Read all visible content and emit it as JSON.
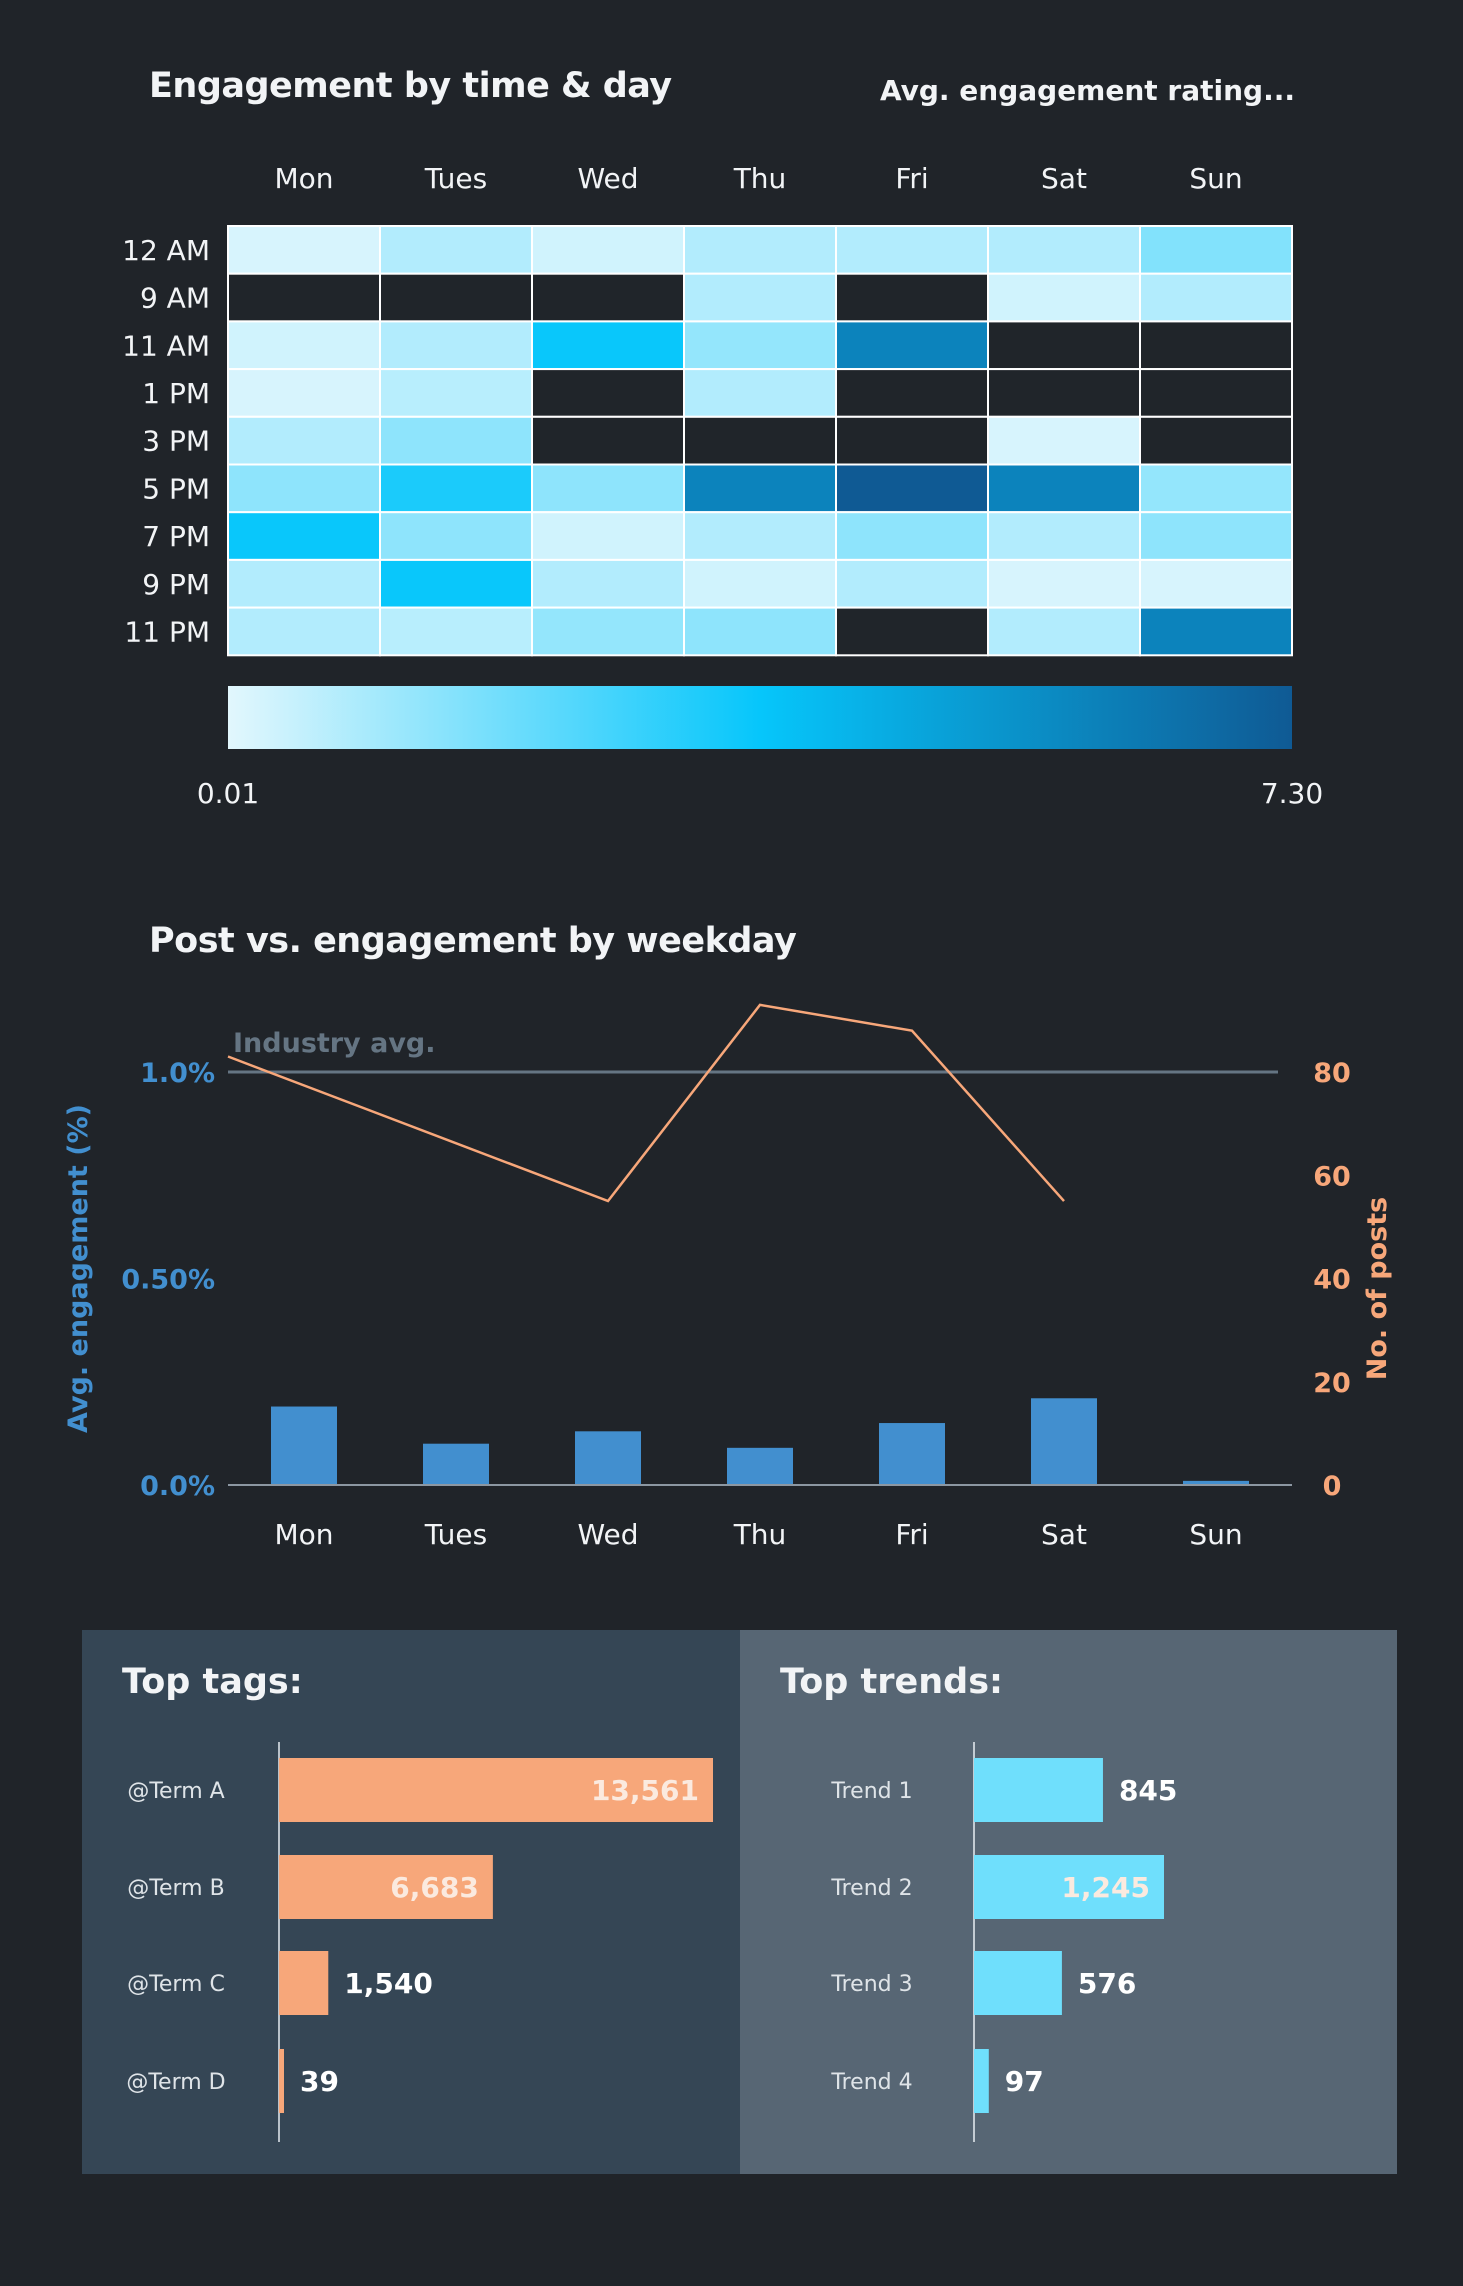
{
  "heatmap": {
    "title": "Engagement by time & day",
    "legend_title": "Avg. engagement rating...",
    "scale_min_label": "0.01",
    "scale_max_label": "7.30"
  },
  "combo": {
    "title": "Post vs. engagement by weekday",
    "industry_label": "Industry avg."
  },
  "tags": {
    "title": "Top tags:"
  },
  "trends": {
    "title": "Top trends:"
  },
  "colors": {
    "background": "#202429",
    "heat_empty": "#20252a",
    "heat_low": "#e2f7fd",
    "heat_mid": "#06c6fb",
    "heat_high": "#0f5a94",
    "bar_blue": "#428fcf",
    "line_orange": "#f7a77a",
    "industry_line": "#657583",
    "tag_bar": "#f7a77a",
    "trend_bar": "#6fdffc"
  },
  "chart_data": [
    {
      "type": "heatmap",
      "title": "Engagement by time & day",
      "x": [
        "Mon",
        "Tues",
        "Wed",
        "Thu",
        "Fri",
        "Sat",
        "Sun"
      ],
      "y": [
        "12 AM",
        "9 AM",
        "11 AM",
        "1 PM",
        "3 PM",
        "5 PM",
        "7 PM",
        "9 PM",
        "11 PM"
      ],
      "values": [
        [
          0.2,
          0.8,
          0.3,
          0.8,
          0.8,
          0.8,
          1.6
        ],
        [
          null,
          null,
          null,
          0.8,
          null,
          0.3,
          0.8
        ],
        [
          0.3,
          0.8,
          3.6,
          1.3,
          5.9,
          null,
          null
        ],
        [
          0.2,
          0.7,
          null,
          0.8,
          null,
          null,
          null
        ],
        [
          0.8,
          1.4,
          null,
          null,
          null,
          0.2,
          null
        ],
        [
          1.4,
          3.3,
          1.4,
          5.9,
          7.3,
          5.9,
          1.3
        ],
        [
          3.6,
          1.4,
          0.3,
          0.8,
          1.4,
          0.8,
          1.4
        ],
        [
          0.8,
          3.6,
          0.8,
          0.3,
          0.8,
          0.2,
          0.2
        ],
        [
          0.8,
          0.7,
          1.3,
          1.4,
          null,
          0.8,
          5.9
        ]
      ],
      "color_range": [
        0.01,
        7.3
      ],
      "legend_title": "Avg. engagement rating..."
    },
    {
      "type": "bar",
      "title": "Post vs. engagement by weekday",
      "categories": [
        "Mon",
        "Tues",
        "Wed",
        "Thu",
        "Fri",
        "Sat",
        "Sun"
      ],
      "series": [
        {
          "name": "",
          "type": "bar",
          "axis": "left",
          "values": [
            0.19,
            0.1,
            0.13,
            0.09,
            0.15,
            0.21,
            0.01
          ]
        },
        {
          "name": "",
          "type": "line",
          "axis": "right",
          "values": [
            83,
            null,
            55,
            93,
            88,
            55,
            null
          ]
        }
      ],
      "reference_line": {
        "label": "Industry avg.",
        "value": 1.0
      },
      "ylabel": "Avg. engagement (%)",
      "y2label": "No. of posts",
      "ylim": [
        0,
        1.0
      ],
      "y2lim": [
        0,
        80
      ],
      "yticks": [
        "0.0%",
        "0.50%",
        "1.0%"
      ],
      "y2ticks": [
        "0",
        "20",
        "40",
        "60",
        "80"
      ]
    },
    {
      "type": "bar",
      "orientation": "horizontal",
      "title": "Top tags:",
      "categories": [
        "@Term A",
        "@Term B",
        "@Term C",
        "@Term D"
      ],
      "values": [
        13561,
        6683,
        1540,
        39
      ],
      "labels": [
        "13,561",
        "6,683",
        "1,540",
        "39"
      ]
    },
    {
      "type": "bar",
      "orientation": "horizontal",
      "title": "Top trends:",
      "categories": [
        "Trend 1",
        "Trend 2",
        "Trend 3",
        "Trend 4"
      ],
      "values": [
        845,
        1245,
        576,
        97
      ],
      "labels": [
        "845",
        "1,245",
        "576",
        "97"
      ]
    }
  ]
}
